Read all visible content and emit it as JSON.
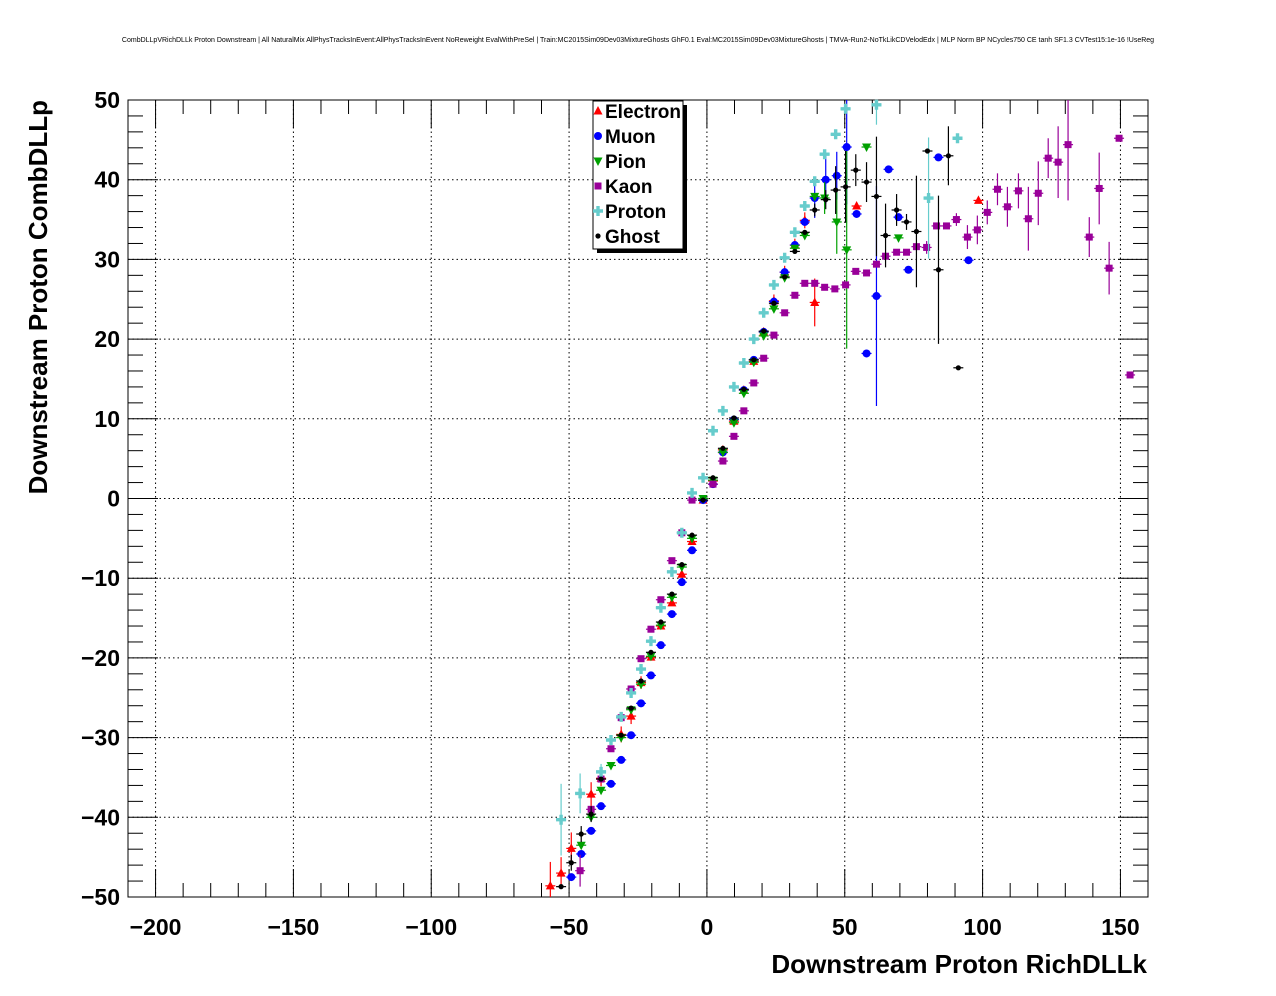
{
  "chart_data": {
    "type": "scatter",
    "title": "CombDLLpVRichDLLk Proton Downstream | All NaturalMix AllPhysTracksInEvent:AllPhysTracksInEvent NoReweight EvalWithPreSel | Train:MC2015Sim09Dev03MixtureGhosts GhF0.1 Eval:MC2015Sim09Dev03MixtureGhosts | TMVA-Run2-NoTkLikCDVelodEdx | MLP Norm BP NCycles750 CE tanh SF1.3 CVTest15:1e-16 !UseReg",
    "xlabel": "Downstream Proton RichDLLk",
    "ylabel": "Downstream Proton CombDLLp",
    "xlim": [
      -210,
      160
    ],
    "ylim": [
      -50,
      50
    ],
    "xticks": [
      -200,
      -150,
      -100,
      -50,
      0,
      50,
      100,
      150
    ],
    "xtick_labels": [
      "−200",
      "−150",
      "−100",
      "−50",
      "0",
      "50",
      "100",
      "150"
    ],
    "yticks": [
      -50,
      -40,
      -30,
      -20,
      -10,
      0,
      10,
      20,
      30,
      40,
      50
    ],
    "ytick_labels": [
      "−50",
      "−40",
      "−30",
      "−20",
      "−10",
      "0",
      "10",
      "20",
      "30",
      "40",
      "50"
    ],
    "grid": true,
    "legend_position": "top-center",
    "series": [
      {
        "name": "Electron",
        "color": "#ff0000",
        "marker": "triangle-up",
        "points": [
          [
            -56.8,
            -48.6,
            3
          ],
          [
            -52.9,
            -47,
            2
          ],
          [
            -49.2,
            -43.9,
            2
          ],
          [
            -42,
            -37.1,
            1.5
          ],
          [
            -38.4,
            -35.1,
            1
          ],
          [
            -31.1,
            -29.6,
            1
          ],
          [
            -27.5,
            -27.3,
            1
          ],
          [
            -23.9,
            -23.1,
            0.8
          ],
          [
            -20.3,
            -19.9,
            0.6
          ],
          [
            -16.7,
            -16,
            0.6
          ],
          [
            -12.7,
            -13.1,
            0.5
          ],
          [
            -9.1,
            -9.5,
            0.5
          ],
          [
            -5.4,
            -5.4,
            0.5
          ],
          [
            -1.4,
            -0.2,
            0.5
          ],
          [
            2.2,
            2.2,
            0.5
          ],
          [
            5.8,
            6.1,
            0.5
          ],
          [
            9.8,
            9.7,
            0.5
          ],
          [
            13.4,
            13.6,
            0.5
          ],
          [
            17,
            17.2,
            0.5
          ],
          [
            20.6,
            20.9,
            0.6
          ],
          [
            24.3,
            24.8,
            0.8
          ],
          [
            28.2,
            28.4,
            0.8
          ],
          [
            31.9,
            31.8,
            0.8
          ],
          [
            35.5,
            34.9,
            1
          ],
          [
            39.1,
            24.6,
            3
          ],
          [
            54.3,
            36.7,
            0.5
          ],
          [
            98.5,
            37.4,
            0.5
          ]
        ]
      },
      {
        "name": "Muon",
        "color": "#0000ff",
        "marker": "circle",
        "points": [
          [
            -49.2,
            -47.5,
            0.5
          ],
          [
            -45.6,
            -44.6,
            0.5
          ],
          [
            -42,
            -41.7,
            0.5
          ],
          [
            -38.4,
            -38.6,
            0.5
          ],
          [
            -34.8,
            -35.8,
            0.5
          ],
          [
            -31.1,
            -32.8,
            0.5
          ],
          [
            -27.5,
            -29.7,
            0.5
          ],
          [
            -23.9,
            -25.7,
            0.5
          ],
          [
            -20.3,
            -22.2,
            0.5
          ],
          [
            -16.7,
            -18.4,
            0.5
          ],
          [
            -12.7,
            -14.5,
            0.5
          ],
          [
            -9.1,
            -10.5,
            0.5
          ],
          [
            -5.4,
            -6.5,
            0.5
          ],
          [
            -1.4,
            -0.2,
            0.5
          ],
          [
            2.2,
            1.8,
            0.5
          ],
          [
            5.8,
            5.8,
            0.5
          ],
          [
            9.8,
            9.9,
            0.5
          ],
          [
            13.4,
            13.6,
            0.5
          ],
          [
            17,
            17.4,
            0.5
          ],
          [
            20.6,
            20.9,
            0.5
          ],
          [
            24.3,
            24.7,
            0.5
          ],
          [
            28.2,
            28.4,
            0.5
          ],
          [
            31.9,
            31.8,
            0.5
          ],
          [
            35.5,
            34.7,
            0.5
          ],
          [
            39.1,
            37.7,
            2.5
          ],
          [
            43.1,
            40,
            3
          ],
          [
            47.1,
            40.5,
            3
          ],
          [
            50.7,
            44.1,
            7.2
          ],
          [
            54.3,
            35.7,
            0.5
          ],
          [
            57.9,
            18.2,
            0.5
          ],
          [
            61.5,
            25.4,
            13.8
          ],
          [
            65.9,
            41.3,
            0.5
          ],
          [
            69.5,
            35.3,
            0.5
          ],
          [
            73.1,
            28.7,
            0.5
          ],
          [
            84,
            42.8,
            0.5
          ],
          [
            94.9,
            29.9,
            0.5
          ]
        ]
      },
      {
        "name": "Pion",
        "color": "#00a000",
        "marker": "triangle-down",
        "points": [
          [
            -45.6,
            -43.5,
            0.5
          ],
          [
            -42,
            -40,
            0.5
          ],
          [
            -38.4,
            -36.6,
            0.5
          ],
          [
            -34.8,
            -33.5,
            0.5
          ],
          [
            -31.1,
            -30,
            0.5
          ],
          [
            -27.5,
            -26.5,
            0.5
          ],
          [
            -23.9,
            -23.3,
            0.5
          ],
          [
            -20.3,
            -19.8,
            0.5
          ],
          [
            -16.7,
            -15.9,
            0.5
          ],
          [
            -12.7,
            -12.4,
            0.5
          ],
          [
            -9.1,
            -8.6,
            0.5
          ],
          [
            -5.4,
            -5,
            0.5
          ],
          [
            -1.4,
            0,
            0.5
          ],
          [
            2.2,
            2.3,
            0.5
          ],
          [
            5.8,
            5.8,
            0.5
          ],
          [
            9.8,
            9.5,
            0.5
          ],
          [
            13.4,
            13.2,
            0.5
          ],
          [
            17,
            17.1,
            0.5
          ],
          [
            20.6,
            20.4,
            0.5
          ],
          [
            24.3,
            23.8,
            0.5
          ],
          [
            28.2,
            27.7,
            0.5
          ],
          [
            31.9,
            31.4,
            0.5
          ],
          [
            35.5,
            33,
            0.5
          ],
          [
            39.1,
            37.9,
            0.5
          ],
          [
            42.7,
            37.7,
            2
          ],
          [
            47.1,
            34.7,
            4
          ],
          [
            50.7,
            31.2,
            12.4
          ],
          [
            57.9,
            44.1,
            0.5
          ],
          [
            69.5,
            32.7,
            0.5
          ]
        ]
      },
      {
        "name": "Kaon",
        "color": "#990099",
        "marker": "square",
        "points": [
          [
            -46,
            -46.7,
            2
          ],
          [
            -42,
            -39,
            0.5
          ],
          [
            -38.4,
            -35.2,
            0.5
          ],
          [
            -34.8,
            -31.4,
            0.5
          ],
          [
            -31.1,
            -27.5,
            0.5
          ],
          [
            -27.5,
            -23.9,
            0.5
          ],
          [
            -23.9,
            -20.1,
            0.5
          ],
          [
            -20.3,
            -16.4,
            0.5
          ],
          [
            -16.7,
            -12.7,
            0.5
          ],
          [
            -12.7,
            -7.8,
            0.5
          ],
          [
            -9.1,
            -4.3,
            0.5
          ],
          [
            -5.4,
            -0.2,
            0.5
          ],
          [
            2.2,
            1.8,
            0.5
          ],
          [
            5.8,
            4.7,
            0.5
          ],
          [
            9.8,
            7.8,
            0.5
          ],
          [
            13.4,
            11,
            0.5
          ],
          [
            17,
            14.5,
            0.5
          ],
          [
            20.6,
            17.6,
            0.5
          ],
          [
            24.3,
            20.5,
            0.5
          ],
          [
            28.2,
            23.3,
            0.5
          ],
          [
            31.9,
            25.5,
            0.5
          ],
          [
            35.5,
            27,
            0.5
          ],
          [
            39.1,
            27,
            0.5
          ],
          [
            42.7,
            26.5,
            0.5
          ],
          [
            46.4,
            26.3,
            0.5
          ],
          [
            50.3,
            26.8,
            0.5
          ],
          [
            54,
            28.5,
            0.5
          ],
          [
            57.9,
            28.3,
            0.5
          ],
          [
            61.5,
            29.4,
            0.5
          ],
          [
            64.8,
            30.4,
            0.5
          ],
          [
            68.8,
            30.9,
            0.5
          ],
          [
            72.4,
            30.9,
            0.5
          ],
          [
            76,
            31.6,
            0.5
          ],
          [
            79.7,
            31.5,
            0.8
          ],
          [
            83.3,
            34.2,
            0.5
          ],
          [
            86.9,
            34.2,
            0.5
          ],
          [
            90.5,
            35,
            0.8
          ],
          [
            94.5,
            32.8,
            1.5
          ],
          [
            98.1,
            33.7,
            1.8
          ],
          [
            101.7,
            35.9,
            1.5
          ],
          [
            105.4,
            38.8,
            2
          ],
          [
            109,
            36.6,
            2.5
          ],
          [
            113,
            38.6,
            2.2
          ],
          [
            116.6,
            35.1,
            4
          ],
          [
            120.2,
            38.3,
            4
          ],
          [
            123.8,
            42.7,
            2.5
          ],
          [
            127.4,
            42.2,
            4.5
          ],
          [
            131,
            44.4,
            7
          ],
          [
            138.7,
            32.8,
            2.5
          ],
          [
            142.3,
            38.9,
            4.5
          ],
          [
            145.9,
            28.9,
            3.3
          ],
          [
            149.5,
            45.2,
            0.5
          ],
          [
            153.5,
            15.5,
            0.5
          ]
        ]
      },
      {
        "name": "Proton",
        "color": "#66cccc",
        "marker": "cross",
        "points": [
          [
            -52.9,
            -40.3,
            4.5
          ],
          [
            -46,
            -37,
            2.5
          ],
          [
            -38.4,
            -34.3,
            1
          ],
          [
            -34.8,
            -30.3,
            0.5
          ],
          [
            -31.1,
            -27.4,
            0.5
          ],
          [
            -27.5,
            -24.4,
            0.5
          ],
          [
            -23.9,
            -21.4,
            0.5
          ],
          [
            -20.3,
            -17.9,
            0.5
          ],
          [
            -16.7,
            -13.7,
            0.5
          ],
          [
            -12.7,
            -9.2,
            0.5
          ],
          [
            -9.1,
            -4.3,
            0.5
          ],
          [
            -5.4,
            0.7,
            0.5
          ],
          [
            -1.4,
            2.6,
            0.5
          ],
          [
            2.2,
            8.5,
            0.5
          ],
          [
            5.8,
            11,
            0.5
          ],
          [
            9.8,
            14,
            0.5
          ],
          [
            13.4,
            17,
            0.5
          ],
          [
            17,
            20,
            0.5
          ],
          [
            20.6,
            23.3,
            0.5
          ],
          [
            24.3,
            26.8,
            0.5
          ],
          [
            28.2,
            30.2,
            0.5
          ],
          [
            31.9,
            33.4,
            0.5
          ],
          [
            35.5,
            36.7,
            0.5
          ],
          [
            39.1,
            39.8,
            0.5
          ],
          [
            42.7,
            43.2,
            0.5
          ],
          [
            46.7,
            45.7,
            0.5
          ],
          [
            50.3,
            48.9,
            0.5
          ],
          [
            61.5,
            49.4,
            2.5
          ],
          [
            80.4,
            37.7,
            7.6
          ],
          [
            90.9,
            45.2,
            0.5
          ]
        ]
      },
      {
        "name": "Ghost",
        "color": "#000000",
        "marker": "dot",
        "points": [
          [
            -52.9,
            -48.7,
            0.5
          ],
          [
            -49.2,
            -45.7,
            1
          ],
          [
            -45.6,
            -42.1,
            1
          ],
          [
            -42,
            -39.6,
            1
          ],
          [
            -38.4,
            -35.2,
            0.5
          ],
          [
            -31.1,
            -29.7,
            0.5
          ],
          [
            -27.5,
            -26.3,
            0.5
          ],
          [
            -23.9,
            -22.9,
            0.5
          ],
          [
            -20.3,
            -19.3,
            0.5
          ],
          [
            -16.7,
            -15.5,
            0.5
          ],
          [
            -12.7,
            -12,
            0.5
          ],
          [
            -9.1,
            -8.3,
            0.5
          ],
          [
            -5.4,
            -4.6,
            0.5
          ],
          [
            -1.4,
            -0.2,
            0.5
          ],
          [
            2.2,
            2.6,
            0.5
          ],
          [
            5.8,
            6.3,
            0.5
          ],
          [
            9.8,
            10.1,
            0.5
          ],
          [
            13.4,
            13.7,
            0.5
          ],
          [
            17,
            17.4,
            0.5
          ],
          [
            20.6,
            21,
            0.5
          ],
          [
            24.3,
            24.5,
            0.5
          ],
          [
            28.2,
            27.8,
            0.5
          ],
          [
            31.9,
            31,
            0.5
          ],
          [
            35.5,
            33.4,
            0.5
          ],
          [
            39.1,
            36.2,
            0.8
          ],
          [
            43.1,
            37.5,
            1.2
          ],
          [
            46.7,
            38.7,
            3
          ],
          [
            50.3,
            39.1,
            4.5
          ],
          [
            54,
            41.2,
            2
          ],
          [
            57.9,
            39.7,
            2.5
          ],
          [
            61.5,
            37.9,
            7.5
          ],
          [
            64.8,
            33,
            4
          ],
          [
            68.8,
            36.2,
            2
          ],
          [
            72.4,
            34.7,
            1
          ],
          [
            76,
            33.5,
            7
          ],
          [
            80,
            43.6,
            0.5
          ],
          [
            84,
            28.7,
            9.3
          ],
          [
            87.6,
            43,
            3.7
          ],
          [
            91.2,
            16.4,
            0.5
          ]
        ]
      }
    ]
  }
}
